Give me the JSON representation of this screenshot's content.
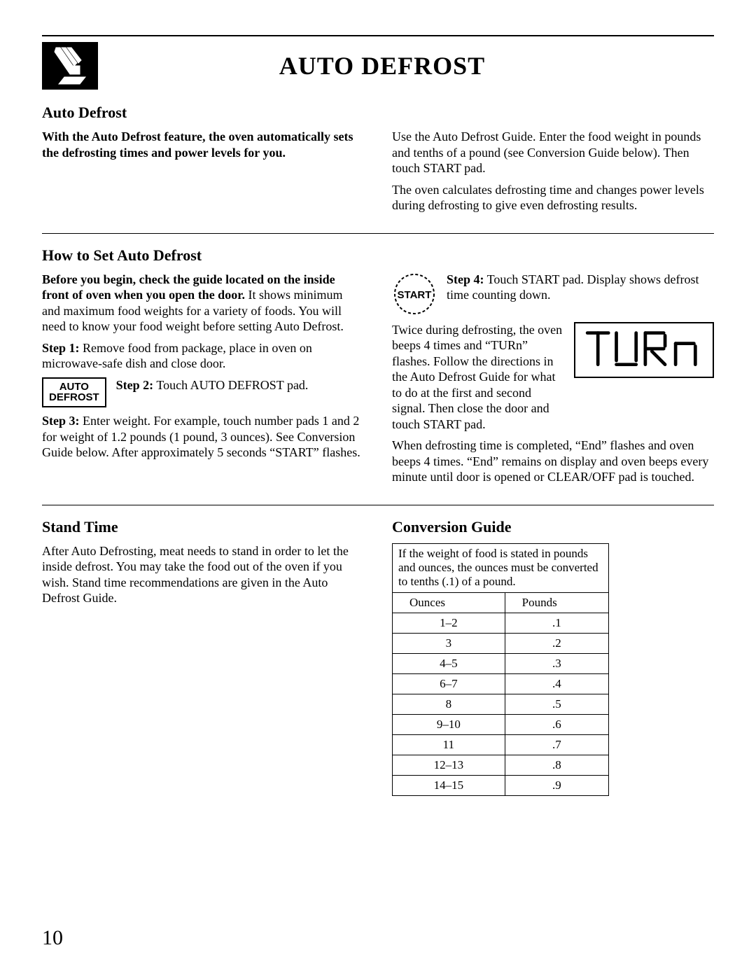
{
  "page": {
    "title": "AUTO DEFROST",
    "number": "10"
  },
  "s1": {
    "heading": "Auto Defrost",
    "left_bold": "With the Auto Defrost feature, the oven automatically sets the defrosting times and power levels for you.",
    "right_p1": "Use the Auto Defrost Guide. Enter the food weight in pounds and tenths of a pound (see Conversion Guide below). Then touch START pad.",
    "right_p2": "The oven calculates defrosting time and changes power levels during defrosting to give even defrosting results."
  },
  "s2": {
    "heading": "How to Set Auto Defrost",
    "left_bold": "Before you begin, check the guide located on the inside front of oven when you open the door.",
    "left_after_bold": " It shows minimum and maximum food weights for a variety of foods. You will need to know your food weight before setting Auto Defrost.",
    "step1_label": "Step 1:",
    "step1_text": " Remove food from package, place in oven on microwave-safe dish and close door.",
    "autodefrost_pad_line1": "AUTO",
    "autodefrost_pad_line2": "DEFROST",
    "step2_label": "Step 2:",
    "step2_text": " Touch AUTO DEFROST pad.",
    "step3_label": "Step 3:",
    "step3_text": " Enter weight. For example, touch number pads 1 and 2 for weight of 1.2 pounds (1 pound, 3 ounces). See Conversion Guide below. After approximately 5 seconds “START” flashes.",
    "start_pad_label": "START",
    "step4_label": "Step 4:",
    "step4_text": " Touch START pad. Display shows defrost time counting down.",
    "turn_text": "Twice during defrosting, the oven beeps 4 times and “TURn” flashes. Follow the directions in the Auto Defrost Guide for what to do at the first and second signal. Then close the door and touch START pad.",
    "after_turn": "When defrosting time is completed, “End” flashes and oven beeps 4 times. “End” remains on display and oven beeps every minute until door is opened or CLEAR/OFF pad is touched."
  },
  "s3": {
    "stand_heading": "Stand Time",
    "stand_text": "After Auto Defrosting, meat needs to stand in order to let the inside defrost. You may take the food out of the oven if you wish. Stand time recommendations are given in the Auto Defrost Guide.",
    "conv_heading": "Conversion Guide",
    "conv_note": "If the weight of food is stated in pounds and ounces, the ounces must be converted to tenths (.1) of a pound.",
    "col_ounces": "Ounces",
    "col_pounds": "Pounds",
    "rows": [
      {
        "oz": "1–2",
        "lb": ".1"
      },
      {
        "oz": "3",
        "lb": ".2"
      },
      {
        "oz": "4–5",
        "lb": ".3"
      },
      {
        "oz": "6–7",
        "lb": ".4"
      },
      {
        "oz": "8",
        "lb": ".5"
      },
      {
        "oz": "9–10",
        "lb": ".6"
      },
      {
        "oz": "11",
        "lb": ".7"
      },
      {
        "oz": "12–13",
        "lb": ".8"
      },
      {
        "oz": "14–15",
        "lb": ".9"
      }
    ]
  }
}
